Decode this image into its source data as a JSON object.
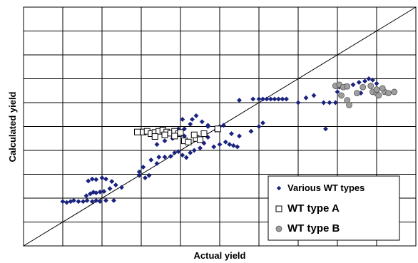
{
  "chart_data": {
    "type": "scatter",
    "xlabel": "Actual yield",
    "ylabel": "Calculated yield",
    "xlim": [
      0,
      10
    ],
    "ylim": [
      0,
      10
    ],
    "grid": true,
    "legend_position": "bottom-right",
    "reference_line": {
      "x": [
        0,
        10
      ],
      "y": [
        0,
        10
      ]
    },
    "series": [
      {
        "name": "Various WT types",
        "marker": "diamond",
        "color": "#1a237e",
        "points": [
          [
            1.0,
            1.86
          ],
          [
            1.1,
            1.82
          ],
          [
            1.2,
            1.86
          ],
          [
            1.28,
            1.9
          ],
          [
            1.4,
            1.86
          ],
          [
            1.52,
            1.86
          ],
          [
            1.62,
            1.9
          ],
          [
            1.75,
            1.86
          ],
          [
            1.85,
            1.9
          ],
          [
            1.95,
            1.86
          ],
          [
            2.1,
            1.9
          ],
          [
            2.3,
            1.9
          ],
          [
            1.6,
            2.1
          ],
          [
            1.7,
            2.18
          ],
          [
            1.78,
            2.25
          ],
          [
            1.85,
            2.22
          ],
          [
            1.95,
            2.26
          ],
          [
            2.05,
            2.28
          ],
          [
            2.2,
            2.4
          ],
          [
            2.35,
            2.55
          ],
          [
            2.5,
            2.45
          ],
          [
            1.65,
            2.72
          ],
          [
            1.75,
            2.8
          ],
          [
            1.85,
            2.78
          ],
          [
            2.0,
            2.85
          ],
          [
            2.1,
            2.8
          ],
          [
            2.25,
            2.7
          ],
          [
            2.95,
            2.95
          ],
          [
            3.1,
            2.85
          ],
          [
            3.2,
            2.95
          ],
          [
            2.95,
            3.1
          ],
          [
            3.05,
            3.3
          ],
          [
            3.25,
            3.6
          ],
          [
            3.4,
            3.45
          ],
          [
            3.45,
            3.72
          ],
          [
            3.6,
            3.72
          ],
          [
            3.75,
            3.75
          ],
          [
            3.85,
            3.9
          ],
          [
            3.95,
            3.95
          ],
          [
            4.05,
            3.8
          ],
          [
            4.15,
            3.7
          ],
          [
            4.25,
            3.9
          ],
          [
            4.35,
            4.0
          ],
          [
            4.5,
            4.1
          ],
          [
            4.6,
            4.3
          ],
          [
            4.7,
            4.55
          ],
          [
            4.85,
            4.15
          ],
          [
            5.0,
            4.25
          ],
          [
            5.15,
            4.35
          ],
          [
            5.25,
            4.25
          ],
          [
            5.35,
            4.2
          ],
          [
            5.45,
            4.15
          ],
          [
            3.4,
            4.25
          ],
          [
            3.6,
            4.4
          ],
          [
            3.8,
            4.5
          ],
          [
            3.95,
            4.9
          ],
          [
            4.1,
            4.9
          ],
          [
            4.25,
            5.1
          ],
          [
            4.3,
            5.3
          ],
          [
            4.4,
            5.45
          ],
          [
            4.55,
            5.2
          ],
          [
            4.7,
            5.0
          ],
          [
            4.9,
            4.85
          ],
          [
            5.0,
            5.0
          ],
          [
            4.7,
            5.05
          ],
          [
            5.1,
            5.05
          ],
          [
            5.3,
            4.7
          ],
          [
            5.5,
            4.6
          ],
          [
            6.0,
            5.0
          ],
          [
            4.05,
            5.3
          ],
          [
            4.1,
            4.6
          ],
          [
            5.5,
            6.1
          ],
          [
            5.85,
            6.15
          ],
          [
            6.0,
            6.15
          ],
          [
            6.1,
            6.15
          ],
          [
            6.2,
            6.15
          ],
          [
            6.3,
            6.15
          ],
          [
            6.4,
            6.15
          ],
          [
            6.5,
            6.15
          ],
          [
            6.6,
            6.15
          ],
          [
            6.7,
            6.15
          ],
          [
            6.1,
            5.15
          ],
          [
            5.8,
            4.8
          ],
          [
            7.0,
            6.0
          ],
          [
            7.2,
            6.2
          ],
          [
            7.4,
            6.3
          ],
          [
            7.65,
            6.0
          ],
          [
            7.8,
            6.0
          ],
          [
            7.95,
            6.0
          ],
          [
            7.7,
            4.9
          ],
          [
            8.0,
            6.45
          ],
          [
            8.05,
            6.65
          ],
          [
            8.2,
            6.7
          ],
          [
            8.4,
            6.75
          ],
          [
            8.55,
            6.85
          ],
          [
            8.7,
            6.9
          ],
          [
            8.8,
            7.0
          ],
          [
            8.9,
            6.95
          ],
          [
            9.0,
            6.8
          ],
          [
            8.6,
            6.4
          ]
        ]
      },
      {
        "name": "WT type A",
        "marker": "square",
        "color": "#ffffff",
        "points": [
          [
            2.9,
            4.77
          ],
          [
            3.05,
            4.77
          ],
          [
            3.15,
            4.8
          ],
          [
            3.25,
            4.7
          ],
          [
            3.35,
            4.75
          ],
          [
            3.45,
            4.8
          ],
          [
            3.55,
            4.85
          ],
          [
            3.65,
            4.77
          ],
          [
            3.75,
            4.72
          ],
          [
            3.85,
            4.8
          ],
          [
            3.95,
            4.7
          ],
          [
            3.85,
            4.6
          ],
          [
            3.6,
            4.65
          ],
          [
            3.35,
            4.58
          ],
          [
            4.0,
            4.75
          ],
          [
            4.1,
            4.4
          ],
          [
            4.2,
            4.35
          ],
          [
            4.4,
            4.5
          ],
          [
            4.5,
            4.45
          ],
          [
            4.35,
            4.65
          ],
          [
            4.6,
            4.7
          ],
          [
            4.95,
            4.9
          ]
        ]
      },
      {
        "name": "WT type B",
        "marker": "circle",
        "color": "#9e9e9e",
        "points": [
          [
            7.95,
            6.7
          ],
          [
            8.05,
            6.75
          ],
          [
            8.15,
            6.65
          ],
          [
            8.25,
            6.68
          ],
          [
            8.1,
            6.3
          ],
          [
            8.25,
            6.1
          ],
          [
            8.3,
            5.9
          ],
          [
            8.5,
            6.4
          ],
          [
            8.65,
            6.65
          ],
          [
            8.85,
            6.7
          ],
          [
            8.9,
            6.45
          ],
          [
            9.0,
            6.4
          ],
          [
            9.05,
            6.3
          ],
          [
            9.2,
            6.45
          ],
          [
            9.3,
            6.4
          ],
          [
            9.45,
            6.45
          ],
          [
            9.0,
            6.55
          ],
          [
            9.15,
            6.6
          ]
        ]
      }
    ]
  }
}
